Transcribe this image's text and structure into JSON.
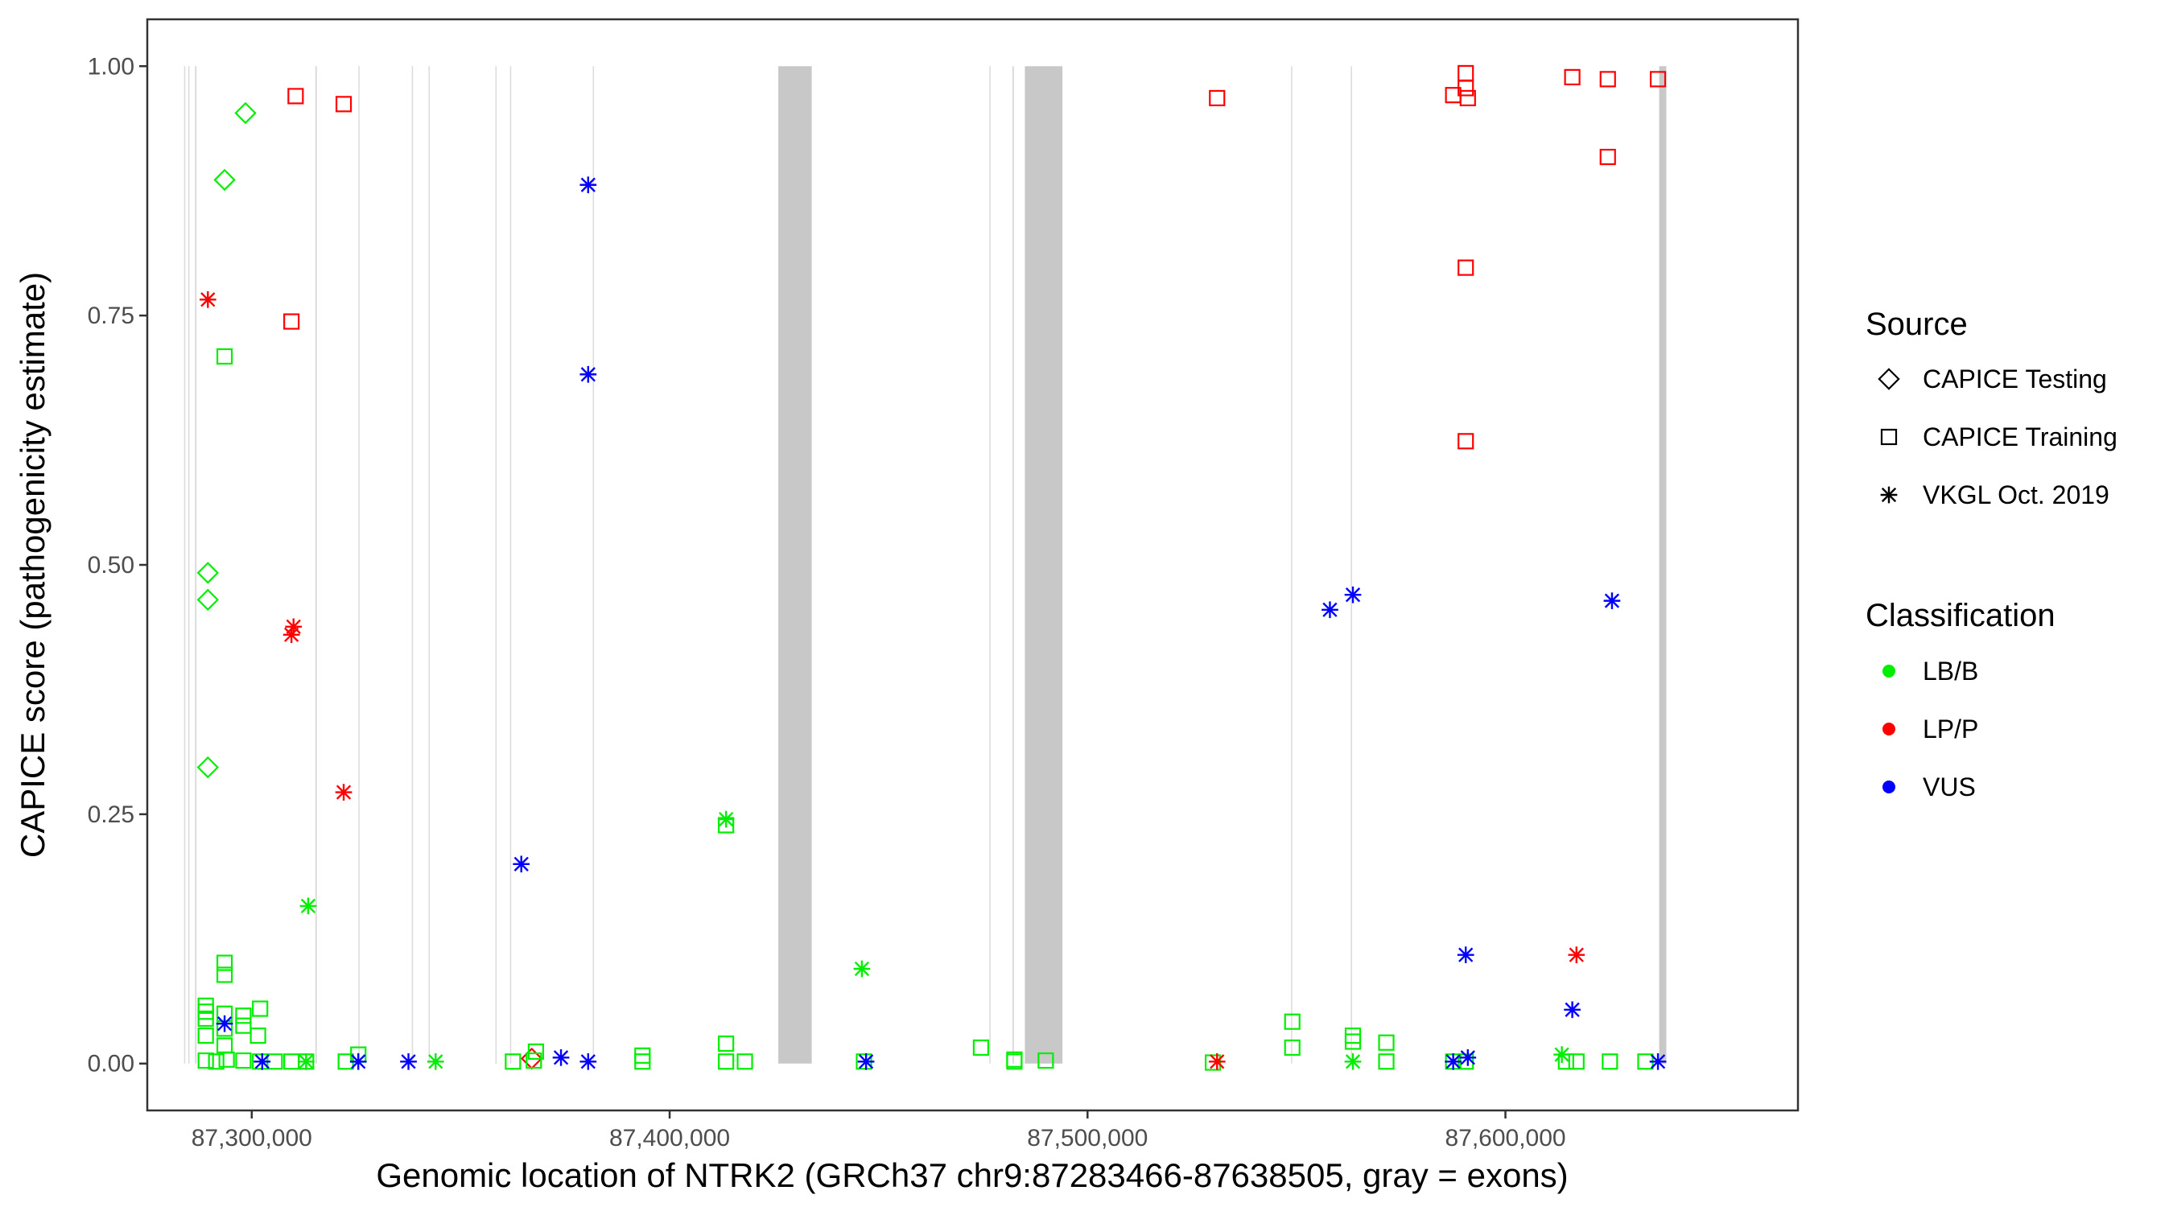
{
  "chart_data": {
    "type": "scatter",
    "xlabel": "Genomic location of NTRK2 (GRCh37 chr9:87283466-87638505, gray = exons)",
    "ylabel": "CAPICE score (pathogenicity estimate)",
    "xlim": [
      87275000,
      87670000
    ],
    "ylim": [
      -0.047,
      1.047
    ],
    "x_ticks": [
      87300000,
      87400000,
      87500000,
      87600000
    ],
    "x_tick_labels": [
      "87,300,000",
      "87,400,000",
      "87,500,000",
      "87,600,000"
    ],
    "y_ticks": [
      0,
      0.25,
      0.5,
      0.75,
      1
    ],
    "y_tick_labels": [
      "0.00",
      "0.25",
      "0.50",
      "0.75",
      "1.00"
    ],
    "grid": false,
    "legend_position": "right",
    "exons": [
      [
        87283800,
        87284100
      ],
      [
        87284800,
        87285100
      ],
      [
        87286400,
        87286800
      ],
      [
        87315200,
        87315600
      ],
      [
        87325500,
        87325800
      ],
      [
        87338300,
        87338600
      ],
      [
        87342300,
        87342600
      ],
      [
        87358300,
        87358600
      ],
      [
        87361800,
        87362100
      ],
      [
        87381600,
        87381900
      ],
      [
        87426000,
        87434000
      ],
      [
        87476500,
        87476800
      ],
      [
        87482000,
        87482400
      ],
      [
        87485000,
        87494000
      ],
      [
        87548700,
        87549000
      ],
      [
        87563000,
        87563300
      ],
      [
        87636800,
        87638500
      ]
    ],
    "source_legend": {
      "title": "Source",
      "items": [
        {
          "label": "CAPICE Testing",
          "shape": "diamond"
        },
        {
          "label": "CAPICE Training",
          "shape": "square"
        },
        {
          "label": "VKGL Oct. 2019",
          "shape": "asterisk"
        }
      ]
    },
    "class_legend": {
      "title": "Classification",
      "items": [
        {
          "label": "LB/B",
          "color": "#00ee00"
        },
        {
          "label": "LP/P",
          "color": "#ff0000"
        },
        {
          "label": "VUS",
          "color": "#0000ff"
        }
      ]
    },
    "series": [
      {
        "source": "CAPICE Testing",
        "classification": "LB/B",
        "points": [
          [
            87298500,
            0.953
          ],
          [
            87293500,
            0.886
          ],
          [
            87289500,
            0.492
          ],
          [
            87289500,
            0.465
          ],
          [
            87289500,
            0.297
          ]
        ]
      },
      {
        "source": "CAPICE Testing",
        "classification": "LP/P",
        "points": [
          [
            87367000,
            0.005
          ]
        ]
      },
      {
        "source": "CAPICE Training",
        "classification": "LB/B",
        "points": [
          [
            87293500,
            0.709
          ],
          [
            87293500,
            0.101
          ],
          [
            87293500,
            0.089
          ],
          [
            87289000,
            0.058
          ],
          [
            87289000,
            0.052
          ],
          [
            87289000,
            0.045
          ],
          [
            87289000,
            0.028
          ],
          [
            87293500,
            0.035
          ],
          [
            87293500,
            0.05
          ],
          [
            87298000,
            0.048
          ],
          [
            87298000,
            0.038
          ],
          [
            87302000,
            0.055
          ],
          [
            87301500,
            0.028
          ],
          [
            87293500,
            0.018
          ],
          [
            87289000,
            0.003
          ],
          [
            87291500,
            0.002
          ],
          [
            87294000,
            0.004
          ],
          [
            87298000,
            0.003
          ],
          [
            87302000,
            0.002
          ],
          [
            87305500,
            0.002
          ],
          [
            87309500,
            0.002
          ],
          [
            87313000,
            0.002
          ],
          [
            87322500,
            0.002
          ],
          [
            87325500,
            0.009
          ],
          [
            87362500,
            0.002
          ],
          [
            87367500,
            0.003
          ],
          [
            87368000,
            0.012
          ],
          [
            87393500,
            0.002
          ],
          [
            87393500,
            0.008
          ],
          [
            87413500,
            0.02
          ],
          [
            87413500,
            0.002
          ],
          [
            87418000,
            0.002
          ],
          [
            87413500,
            0.239
          ],
          [
            87446500,
            0.002
          ],
          [
            87474500,
            0.016
          ],
          [
            87482500,
            0.004
          ],
          [
            87482500,
            0.002
          ],
          [
            87490000,
            0.003
          ],
          [
            87530000,
            0.001
          ],
          [
            87549000,
            0.042
          ],
          [
            87549000,
            0.016
          ],
          [
            87563500,
            0.028
          ],
          [
            87563500,
            0.022
          ],
          [
            87571500,
            0.021
          ],
          [
            87571500,
            0.002
          ],
          [
            87587500,
            0.002
          ],
          [
            87590500,
            0.002
          ],
          [
            87614500,
            0.002
          ],
          [
            87617000,
            0.002
          ],
          [
            87625000,
            0.002
          ],
          [
            87633500,
            0.002
          ]
        ]
      },
      {
        "source": "CAPICE Training",
        "classification": "LP/P",
        "points": [
          [
            87310500,
            0.97
          ],
          [
            87322000,
            0.962
          ],
          [
            87309500,
            0.744
          ],
          [
            87531000,
            0.968
          ],
          [
            87587500,
            0.971
          ],
          [
            87590500,
            0.993
          ],
          [
            87590500,
            0.978
          ],
          [
            87591000,
            0.968
          ],
          [
            87616000,
            0.989
          ],
          [
            87624500,
            0.987
          ],
          [
            87636500,
            0.987
          ],
          [
            87624500,
            0.909
          ],
          [
            87590500,
            0.798
          ],
          [
            87590500,
            0.624
          ]
        ]
      },
      {
        "source": "VKGL Oct. 2019",
        "classification": "LB/B",
        "points": [
          [
            87313500,
            0.158
          ],
          [
            87313000,
            0.002
          ],
          [
            87344000,
            0.002
          ],
          [
            87413500,
            0.245
          ],
          [
            87446000,
            0.095
          ],
          [
            87563500,
            0.002
          ],
          [
            87613500,
            0.009
          ]
        ]
      },
      {
        "source": "VKGL Oct. 2019",
        "classification": "LP/P",
        "points": [
          [
            87289500,
            0.766
          ],
          [
            87310000,
            0.438
          ],
          [
            87309500,
            0.43
          ],
          [
            87322000,
            0.272
          ],
          [
            87531000,
            0.002
          ],
          [
            87617000,
            0.109
          ]
        ]
      },
      {
        "source": "VKGL Oct. 2019",
        "classification": "VUS",
        "points": [
          [
            87380500,
            0.881
          ],
          [
            87380500,
            0.691
          ],
          [
            87364500,
            0.2
          ],
          [
            87293500,
            0.04
          ],
          [
            87302500,
            0.002
          ],
          [
            87325500,
            0.002
          ],
          [
            87337500,
            0.002
          ],
          [
            87374000,
            0.006
          ],
          [
            87380500,
            0.002
          ],
          [
            87447000,
            0.002
          ],
          [
            87558000,
            0.455
          ],
          [
            87563500,
            0.47
          ],
          [
            87625500,
            0.464
          ],
          [
            87590500,
            0.109
          ],
          [
            87616000,
            0.054
          ],
          [
            87587500,
            0.002
          ],
          [
            87591000,
            0.006
          ],
          [
            87636500,
            0.002
          ]
        ]
      }
    ]
  }
}
